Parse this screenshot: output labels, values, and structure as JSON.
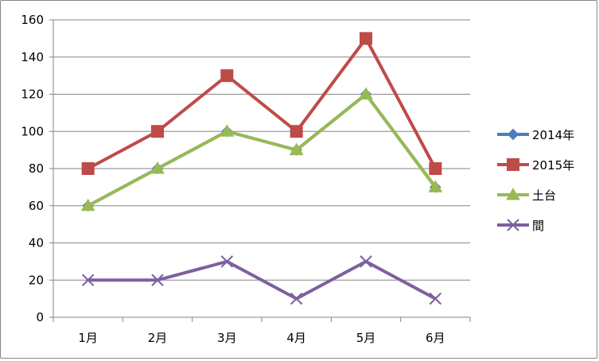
{
  "chart_data": {
    "type": "line",
    "title": "",
    "xlabel": "",
    "ylabel": "",
    "categories": [
      "1月",
      "2月",
      "3月",
      "4月",
      "5月",
      "6月"
    ],
    "ylim": [
      0,
      160
    ],
    "yticks": [
      0,
      20,
      40,
      60,
      80,
      100,
      120,
      140,
      160
    ],
    "grid": true,
    "legend": "right",
    "series": [
      {
        "name": "2014年",
        "values": [
          60,
          80,
          100,
          90,
          120,
          70
        ],
        "color": "#4A7EBB",
        "marker": "diamond"
      },
      {
        "name": "2015年",
        "values": [
          80,
          100,
          130,
          100,
          150,
          80
        ],
        "color": "#BE4B48",
        "marker": "square"
      },
      {
        "name": "土台",
        "values": [
          60,
          80,
          100,
          90,
          120,
          70
        ],
        "color": "#98B954",
        "marker": "triangle"
      },
      {
        "name": "間",
        "values": [
          20,
          20,
          30,
          10,
          30,
          10
        ],
        "color": "#7D60A0",
        "marker": "x"
      }
    ]
  }
}
